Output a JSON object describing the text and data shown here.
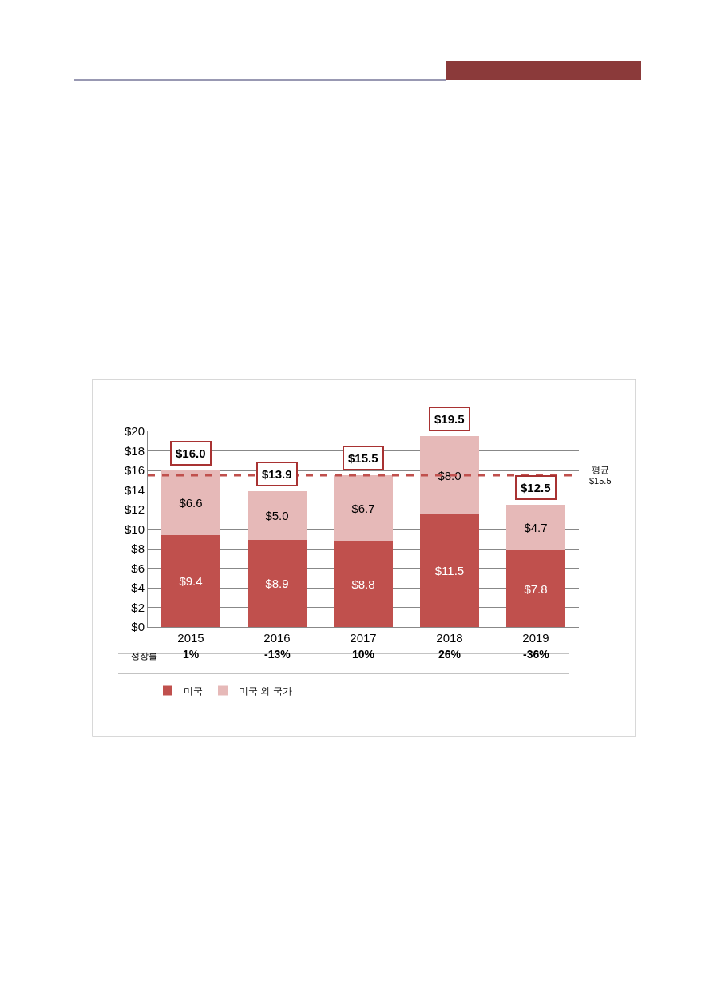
{
  "chart_data": {
    "type": "bar",
    "stacked": true,
    "categories": [
      "2015",
      "2016",
      "2017",
      "2018",
      "2019"
    ],
    "series": [
      {
        "name": "미국",
        "color": "#c0504d",
        "values": [
          9.4,
          8.9,
          8.8,
          11.5,
          7.8
        ],
        "value_labels": [
          "$9.4",
          "$8.9",
          "$8.8",
          "$11.5",
          "$7.8"
        ]
      },
      {
        "name": "미국 외 국가",
        "color": "#e6b9b8",
        "values": [
          6.6,
          5.0,
          6.7,
          8.0,
          4.7
        ],
        "value_labels": [
          "$6.6",
          "$5.0",
          "$6.7",
          "$8.0",
          "$4.7"
        ]
      }
    ],
    "totals": [
      "$16.0",
      "$13.9",
      "$15.5",
      "$19.5",
      "$12.5"
    ],
    "ylim": [
      0,
      20
    ],
    "yticks": [
      {
        "value": 0,
        "label": "$0"
      },
      {
        "value": 2,
        "label": "$2"
      },
      {
        "value": 4,
        "label": "$4"
      },
      {
        "value": 6,
        "label": "$6"
      },
      {
        "value": 8,
        "label": "$8"
      },
      {
        "value": 10,
        "label": "$10"
      },
      {
        "value": 12,
        "label": "$12"
      },
      {
        "value": 14,
        "label": "$14"
      },
      {
        "value": 16,
        "label": "$16"
      },
      {
        "value": 18,
        "label": "$18"
      },
      {
        "value": 20,
        "label": "$20"
      }
    ],
    "ref_lines": [
      {
        "axis": "y",
        "value": 15.5,
        "label": "평균\n$15.5",
        "color": "#c0504d",
        "line_style": "dashed"
      }
    ],
    "annotations": [
      "성장률",
      "1%",
      "-13%",
      "10%",
      "26%",
      "-36%"
    ],
    "grid": "y",
    "legend": "bottom"
  }
}
